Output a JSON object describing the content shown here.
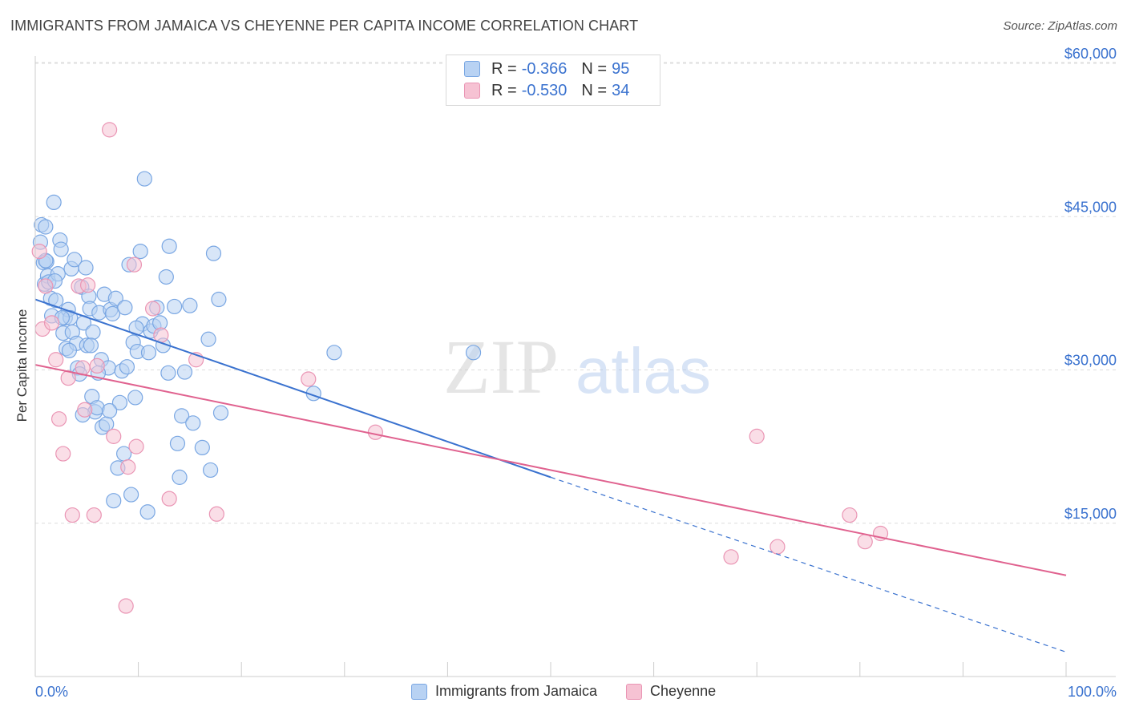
{
  "title": "IMMIGRANTS FROM JAMAICA VS CHEYENNE PER CAPITA INCOME CORRELATION CHART",
  "source": "Source: ZipAtlas.com",
  "watermark": {
    "zip": "ZIP",
    "atlas": "atlas"
  },
  "colors": {
    "blue": "#3a72cf",
    "blue_fill": "#b8d2f3",
    "pink": "#e0628f",
    "pink_fill": "#f6c2d3",
    "tick_label": "#3a72cf",
    "grid": "#dddddd"
  },
  "legend": {
    "rows": [
      {
        "r_label": "R =",
        "r_value": "-0.366",
        "n_label": "N =",
        "n_value": "95",
        "color": "#b8d2f3",
        "border": "#7aa7e3"
      },
      {
        "r_label": "R =",
        "r_value": "-0.530",
        "n_label": "N =",
        "n_value": "34",
        "color": "#f6c2d3",
        "border": "#ea95b4"
      }
    ]
  },
  "bottom_legend": {
    "items": [
      {
        "label": "Immigrants from Jamaica",
        "color": "#b8d2f3",
        "border": "#7aa7e3"
      },
      {
        "label": "Cheyenne",
        "color": "#f6c2d3",
        "border": "#ea95b4"
      }
    ]
  },
  "chart_data": {
    "type": "scatter",
    "title": "IMMIGRANTS FROM JAMAICA VS CHEYENNE PER CAPITA INCOME CORRELATION CHART",
    "xlabel": "",
    "ylabel": "Per Capita Income",
    "xlim": [
      0,
      100
    ],
    "ylim": [
      0,
      62000
    ],
    "x_tick_labels": [
      "0.0%",
      "100.0%"
    ],
    "y_ticks": [
      15000,
      30000,
      45000,
      60000
    ],
    "y_tick_labels": [
      "$15,000",
      "$30,000",
      "$45,000",
      "$60,000"
    ],
    "grid": true,
    "legend_position": "top-center",
    "series": [
      {
        "name": "Immigrants from Jamaica",
        "color": "#3a72cf",
        "points": [
          [
            0.5,
            42500
          ],
          [
            0.6,
            44200
          ],
          [
            0.8,
            40500
          ],
          [
            0.9,
            38400
          ],
          [
            1.0,
            44000
          ],
          [
            1.1,
            40600
          ],
          [
            1.2,
            39200
          ],
          [
            1.3,
            38600
          ],
          [
            1.5,
            37000
          ],
          [
            1.6,
            35300
          ],
          [
            1.8,
            46400
          ],
          [
            2.0,
            36800
          ],
          [
            2.2,
            39400
          ],
          [
            2.4,
            42700
          ],
          [
            2.5,
            41800
          ],
          [
            2.7,
            33600
          ],
          [
            2.9,
            35100
          ],
          [
            3.0,
            32100
          ],
          [
            3.2,
            35900
          ],
          [
            3.4,
            35100
          ],
          [
            3.5,
            39900
          ],
          [
            3.6,
            33700
          ],
          [
            3.8,
            40800
          ],
          [
            4.0,
            32600
          ],
          [
            4.1,
            30200
          ],
          [
            4.3,
            29600
          ],
          [
            4.5,
            38100
          ],
          [
            4.7,
            34600
          ],
          [
            4.9,
            40000
          ],
          [
            5.0,
            32400
          ],
          [
            5.2,
            37200
          ],
          [
            5.3,
            36000
          ],
          [
            5.5,
            27400
          ],
          [
            5.6,
            33700
          ],
          [
            5.8,
            25900
          ],
          [
            6.0,
            26300
          ],
          [
            6.2,
            35600
          ],
          [
            6.4,
            31000
          ],
          [
            6.5,
            24400
          ],
          [
            6.7,
            37400
          ],
          [
            6.9,
            24700
          ],
          [
            7.1,
            30200
          ],
          [
            7.3,
            35900
          ],
          [
            7.5,
            35500
          ],
          [
            7.6,
            17200
          ],
          [
            7.8,
            37000
          ],
          [
            8.0,
            20400
          ],
          [
            8.2,
            26800
          ],
          [
            8.4,
            29900
          ],
          [
            8.7,
            36100
          ],
          [
            8.9,
            30300
          ],
          [
            9.1,
            40300
          ],
          [
            9.3,
            17800
          ],
          [
            9.5,
            32700
          ],
          [
            9.7,
            27300
          ],
          [
            9.9,
            31800
          ],
          [
            10.2,
            41600
          ],
          [
            10.4,
            34500
          ],
          [
            10.6,
            48700
          ],
          [
            10.9,
            16100
          ],
          [
            11.2,
            33800
          ],
          [
            11.5,
            34300
          ],
          [
            11.8,
            36100
          ],
          [
            12.1,
            34600
          ],
          [
            12.4,
            32400
          ],
          [
            12.7,
            39100
          ],
          [
            13.0,
            42100
          ],
          [
            13.5,
            36200
          ],
          [
            13.8,
            22800
          ],
          [
            14.2,
            25500
          ],
          [
            14.5,
            29800
          ],
          [
            15.0,
            36300
          ],
          [
            15.3,
            24800
          ],
          [
            16.2,
            22400
          ],
          [
            16.8,
            33000
          ],
          [
            17.0,
            20200
          ],
          [
            17.3,
            41400
          ],
          [
            17.8,
            36900
          ],
          [
            18.0,
            25800
          ],
          [
            27.0,
            27700
          ],
          [
            29.0,
            31700
          ],
          [
            42.5,
            31700
          ],
          [
            1.0,
            40700
          ],
          [
            1.9,
            38700
          ],
          [
            2.6,
            35100
          ],
          [
            3.3,
            31900
          ],
          [
            4.6,
            25600
          ],
          [
            5.4,
            32400
          ],
          [
            6.1,
            29700
          ],
          [
            7.2,
            26000
          ],
          [
            8.6,
            21800
          ],
          [
            9.8,
            34100
          ],
          [
            11.0,
            31700
          ],
          [
            12.9,
            29700
          ],
          [
            14.0,
            19500
          ]
        ]
      },
      {
        "name": "Cheyenne",
        "color": "#e0628f",
        "points": [
          [
            0.4,
            41600
          ],
          [
            0.7,
            34000
          ],
          [
            1.0,
            38200
          ],
          [
            1.6,
            34600
          ],
          [
            2.0,
            31000
          ],
          [
            2.3,
            25200
          ],
          [
            2.7,
            21800
          ],
          [
            3.2,
            29200
          ],
          [
            3.6,
            15800
          ],
          [
            4.2,
            38200
          ],
          [
            4.6,
            30200
          ],
          [
            4.8,
            26100
          ],
          [
            5.1,
            38300
          ],
          [
            5.7,
            15800
          ],
          [
            6.0,
            30400
          ],
          [
            7.2,
            53500
          ],
          [
            7.6,
            23500
          ],
          [
            8.8,
            6900
          ],
          [
            9.0,
            20500
          ],
          [
            9.6,
            40300
          ],
          [
            9.8,
            22500
          ],
          [
            11.4,
            36000
          ],
          [
            12.2,
            33400
          ],
          [
            13.0,
            17400
          ],
          [
            15.6,
            31000
          ],
          [
            17.6,
            15900
          ],
          [
            26.5,
            29100
          ],
          [
            33.0,
            23900
          ],
          [
            70.0,
            23500
          ],
          [
            67.5,
            11700
          ],
          [
            72.0,
            12700
          ],
          [
            79.0,
            15800
          ],
          [
            80.5,
            13200
          ],
          [
            82.0,
            14000
          ]
        ]
      }
    ],
    "trend_lines": [
      {
        "series": "Immigrants from Jamaica",
        "color": "#3a72cf",
        "x0": 0,
        "y0": 36900,
        "x1": 50,
        "y1": 19500,
        "dashed_to_x": 100,
        "dashed_to_y": 2400
      },
      {
        "series": "Cheyenne",
        "color": "#e0628f",
        "x0": 0,
        "y0": 30500,
        "x1": 100,
        "y1": 9900
      }
    ]
  }
}
